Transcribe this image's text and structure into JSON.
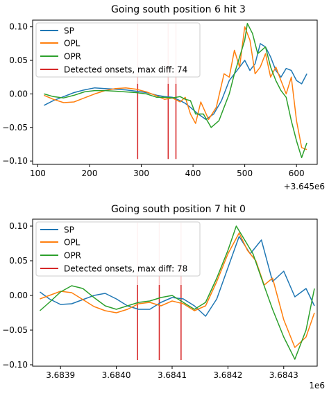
{
  "colors": {
    "SP": "#1f77b4",
    "OPL": "#ff7f0e",
    "OPR": "#2ca02c",
    "onset": "#d62728",
    "onset_faint": "#f7bdbd"
  },
  "chart_data": [
    {
      "type": "line",
      "title": "Going south position 6 hit 3",
      "xlim": [
        90,
        640
      ],
      "ylim": [
        -0.105,
        0.11
      ],
      "xticks": [
        100,
        200,
        300,
        400,
        500,
        600
      ],
      "xtick_labels": [
        "100",
        "200",
        "300",
        "400",
        "500",
        "600"
      ],
      "yticks": [
        -0.1,
        -0.05,
        0.0,
        0.05,
        0.1
      ],
      "ytick_labels": [
        "−0.10",
        "−0.05",
        "0.00",
        "0.05",
        "0.10"
      ],
      "x_offset_label": "+3.645e6",
      "legend_location": "upper left",
      "legend_entries": [
        "SP",
        "OPL",
        "OPR",
        "Detected onsets, max diff: 74"
      ],
      "onsets": [
        293,
        352,
        367
      ],
      "onset_faint_top": 0.105,
      "onset_bottom": -0.097,
      "series": [
        {
          "name": "SP",
          "x": [
            112,
            130,
            150,
            170,
            190,
            210,
            230,
            250,
            270,
            290,
            310,
            330,
            345,
            360,
            375,
            385,
            395,
            410,
            425,
            440,
            455,
            470,
            485,
            500,
            510,
            520,
            530,
            540,
            550,
            560,
            570,
            580,
            590,
            600,
            610,
            620
          ],
          "y": [
            -0.017,
            -0.01,
            -0.004,
            0.002,
            0.006,
            0.009,
            0.008,
            0.007,
            0.006,
            0.004,
            0.002,
            -0.002,
            -0.004,
            -0.005,
            -0.01,
            -0.014,
            -0.02,
            -0.03,
            -0.038,
            -0.03,
            -0.01,
            0.02,
            0.035,
            0.05,
            0.035,
            0.045,
            0.075,
            0.07,
            0.055,
            0.035,
            0.025,
            0.038,
            0.035,
            0.02,
            0.015,
            0.03
          ]
        },
        {
          "name": "OPL",
          "x": [
            112,
            130,
            150,
            170,
            190,
            210,
            230,
            250,
            270,
            290,
            310,
            330,
            345,
            360,
            375,
            385,
            395,
            405,
            415,
            430,
            445,
            460,
            470,
            480,
            490,
            500,
            510,
            520,
            530,
            540,
            550,
            560,
            570,
            580,
            590,
            600,
            610,
            620
          ],
          "y": [
            -0.002,
            -0.008,
            -0.013,
            -0.012,
            -0.006,
            0.0,
            0.005,
            0.008,
            0.009,
            0.007,
            0.003,
            -0.003,
            -0.008,
            -0.006,
            -0.012,
            -0.005,
            -0.03,
            -0.044,
            -0.012,
            -0.038,
            -0.02,
            0.03,
            0.025,
            0.065,
            0.04,
            0.1,
            0.08,
            0.03,
            0.04,
            0.06,
            0.025,
            0.04,
            0.02,
            0.0,
            0.025,
            -0.04,
            -0.08,
            -0.083
          ]
        },
        {
          "name": "OPR",
          "x": [
            112,
            130,
            150,
            170,
            190,
            210,
            230,
            250,
            270,
            290,
            310,
            330,
            345,
            360,
            375,
            385,
            395,
            405,
            420,
            435,
            450,
            460,
            470,
            480,
            490,
            500,
            505,
            515,
            525,
            540,
            550,
            560,
            570,
            580,
            590,
            600,
            610,
            620
          ],
          "y": [
            0.0,
            -0.004,
            -0.006,
            -0.002,
            0.003,
            0.005,
            0.005,
            0.004,
            0.003,
            0.002,
            0.0,
            -0.005,
            -0.005,
            -0.006,
            -0.004,
            -0.008,
            -0.01,
            -0.03,
            -0.03,
            -0.05,
            -0.04,
            -0.02,
            0.0,
            0.03,
            0.055,
            0.08,
            0.105,
            0.09,
            0.06,
            0.07,
            0.04,
            0.02,
            0.005,
            -0.005,
            -0.04,
            -0.07,
            -0.095,
            -0.073
          ]
        }
      ]
    },
    {
      "type": "line",
      "title": "Going south position 7 hit 0",
      "xlim": [
        3683850,
        3684360
      ],
      "ylim": [
        -0.102,
        0.11
      ],
      "xticks": [
        3683900,
        3684000,
        3684100,
        3684200,
        3684300
      ],
      "xtick_labels": [
        "3.6839",
        "3.6840",
        "3.6841",
        "3.6842",
        "3.6843"
      ],
      "yticks": [
        -0.1,
        -0.05,
        0.0,
        0.05,
        0.1
      ],
      "ytick_labels": [
        "−0.10",
        "−0.05",
        "0.00",
        "0.05",
        "0.10"
      ],
      "x_offset_label": "1e6",
      "legend_location": "upper left",
      "legend_entries": [
        "SP",
        "OPL",
        "OPR",
        "Detected onsets, max diff: 78"
      ],
      "onsets": [
        3684038,
        3684077,
        3684116
      ],
      "onset_faint_top": 0.105,
      "onset_bottom": -0.093,
      "series": [
        {
          "name": "SP",
          "x": [
            3683863,
            3683880,
            3683900,
            3683920,
            3683940,
            3683960,
            3683980,
            3684000,
            3684020,
            3684040,
            3684060,
            3684080,
            3684100,
            3684120,
            3684140,
            3684160,
            3684180,
            3684200,
            3684220,
            3684240,
            3684260,
            3684280,
            3684300,
            3684320,
            3684340,
            3684355
          ],
          "y": [
            0.005,
            -0.005,
            -0.013,
            -0.012,
            -0.006,
            0.0,
            0.003,
            -0.005,
            -0.015,
            -0.02,
            -0.02,
            -0.01,
            -0.003,
            -0.005,
            -0.015,
            -0.03,
            -0.005,
            0.04,
            0.085,
            0.06,
            0.08,
            0.02,
            0.035,
            -0.002,
            0.01,
            -0.015
          ]
        },
        {
          "name": "OPL",
          "x": [
            3683863,
            3683880,
            3683900,
            3683920,
            3683940,
            3683960,
            3683980,
            3684000,
            3684020,
            3684040,
            3684060,
            3684080,
            3684100,
            3684120,
            3684140,
            3684160,
            3684180,
            3684200,
            3684220,
            3684235,
            3684250,
            3684265,
            3684280,
            3684300,
            3684320,
            3684340,
            3684355
          ],
          "y": [
            -0.005,
            0.0,
            0.006,
            0.004,
            -0.006,
            -0.016,
            -0.022,
            -0.025,
            -0.02,
            -0.012,
            -0.01,
            -0.015,
            -0.008,
            -0.012,
            -0.022,
            -0.015,
            0.02,
            0.06,
            0.09,
            0.065,
            0.05,
            0.015,
            0.025,
            -0.035,
            -0.075,
            -0.06,
            -0.025
          ]
        },
        {
          "name": "OPR",
          "x": [
            3683863,
            3683880,
            3683900,
            3683920,
            3683940,
            3683960,
            3683980,
            3684000,
            3684020,
            3684040,
            3684060,
            3684080,
            3684100,
            3684120,
            3684140,
            3684160,
            3684180,
            3684200,
            3684215,
            3684230,
            3684245,
            3684260,
            3684280,
            3684300,
            3684320,
            3684340,
            3684355
          ],
          "y": [
            -0.022,
            -0.01,
            0.005,
            0.014,
            0.01,
            -0.003,
            -0.015,
            -0.02,
            -0.015,
            -0.01,
            -0.008,
            -0.003,
            0.0,
            -0.01,
            -0.02,
            -0.01,
            0.025,
            0.065,
            0.1,
            0.08,
            0.06,
            0.025,
            -0.02,
            -0.06,
            -0.092,
            -0.05,
            0.01
          ]
        }
      ]
    }
  ]
}
